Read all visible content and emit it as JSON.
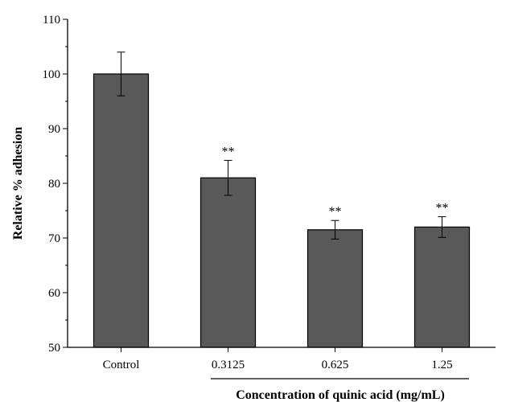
{
  "chart_data": {
    "type": "bar",
    "categories": [
      "Control",
      "0.3125",
      "0.625",
      "1.25"
    ],
    "values": [
      100,
      81,
      71.5,
      72
    ],
    "errors": [
      4,
      3.2,
      1.7,
      1.9
    ],
    "annotations": [
      "",
      "**",
      "**",
      "**"
    ],
    "title": "",
    "xlabel": "Concentration of quinic acid (mg/mL)",
    "ylabel": "Relative % adhesion",
    "ylim": [
      50,
      110
    ],
    "yticks": [
      50,
      60,
      70,
      80,
      90,
      100,
      110
    ],
    "bar_color": "#595959",
    "grid": false
  }
}
